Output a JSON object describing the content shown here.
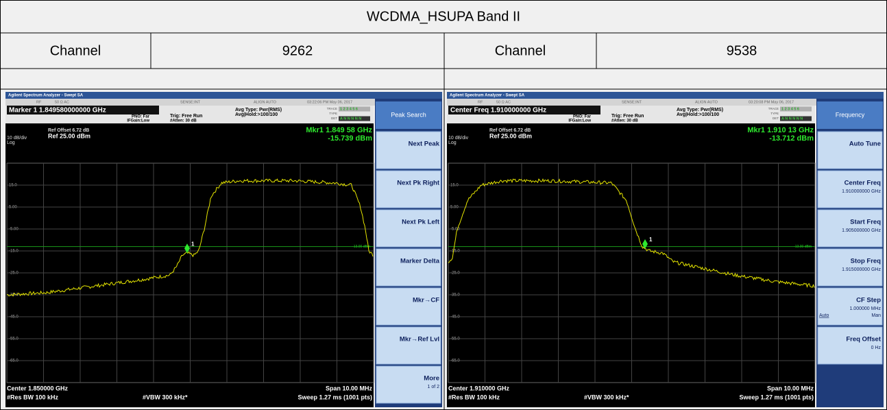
{
  "header": {
    "title": "WCDMA_HSUPA Band II"
  },
  "channels": [
    {
      "label": "Channel",
      "value": "9262"
    },
    {
      "label": "Channel",
      "value": "9538"
    }
  ],
  "analyzers": [
    {
      "app_title": "Agilent Spectrum Analyzer - Swept SA",
      "status": [
        "RF",
        "50 Ω AC",
        "SENSE:INT",
        "ALIGN AUTO",
        "03:22:06 PM May 06, 2017"
      ],
      "marker_line": "Marker 1 1.849580000000 GHz",
      "pno": "PNO: Far",
      "ifgain": "IFGain:Low",
      "trig": "Trig: Free Run",
      "atten": "#Atten: 30 dB",
      "avg_type": "Avg Type: Pwr(RMS)",
      "avg_hold": "Avg|Hold:>100/100",
      "trace_labels": [
        "TRACE",
        "TYPE",
        "DET"
      ],
      "trace_numbers": "1 2 3 4 5 6",
      "det_value": "A N N N N N",
      "ref_offset": "Ref Offset 6.72 dB",
      "scale": "10 dB/div",
      "ref_level": "Ref 25.00 dBm",
      "log": "Log",
      "mkr_freq": "Mkr1 1.849 58 GHz",
      "mkr_level": "-15.739 dBm",
      "y_labels": [
        "15.0",
        "5.00",
        "-5.00",
        "-15.0",
        "-25.0",
        "-35.0",
        "-45.0",
        "-55.0",
        "-65.0"
      ],
      "limit_label": "-13.00 dBm",
      "marker_number": "1",
      "center": "Center 1.850000 GHz",
      "res_bw": "#Res BW 100 kHz",
      "vbw": "#VBW 300 kHz*",
      "span": "Span 10.00 MHz",
      "sweep": "Sweep  1.27 ms (1001 pts)",
      "softkeys": {
        "header": "Peak Search",
        "keys": [
          {
            "label": "Next Peak"
          },
          {
            "label": "Next Pk Right"
          },
          {
            "label": "Next Pk Left"
          },
          {
            "label": "Marker Delta"
          },
          {
            "label": "Mkr→CF"
          },
          {
            "label": "Mkr→Ref Lvl"
          },
          {
            "label": "More",
            "lines": [
              "1 of 2"
            ]
          }
        ]
      }
    },
    {
      "app_title": "Agilent Spectrum Analyzer - Swept SA",
      "status": [
        "RF",
        "50 Ω AC",
        "SENSE:INT",
        "ALIGN AUTO",
        "03:20:08 PM May 06, 2017"
      ],
      "marker_line": "Center Freq  1.910000000 GHz",
      "pno": "PNO: Far",
      "ifgain": "IFGain:Low",
      "trig": "Trig: Free Run",
      "atten": "#Atten: 30 dB",
      "avg_type": "Avg Type: Pwr(RMS)",
      "avg_hold": "Avg|Hold:>100/100",
      "trace_labels": [
        "TRACE",
        "TYPE",
        "DET"
      ],
      "trace_numbers": "1 2 3 4 5 6",
      "det_value": "A N N N N N",
      "ref_offset": "Ref Offset 6.72 dB",
      "scale": "10 dB/div",
      "ref_level": "Ref 25.00 dBm",
      "log": "Log",
      "mkr_freq": "Mkr1 1.910 13 GHz",
      "mkr_level": "-13.712 dBm",
      "y_labels": [
        "15.0",
        "5.00",
        "-5.00",
        "-15.0",
        "-25.0",
        "-35.0",
        "-45.0",
        "-55.0",
        "-65.0"
      ],
      "limit_label": "-13.00 dBm",
      "marker_number": "1",
      "center": "Center 1.910000 GHz",
      "res_bw": "#Res BW 100 kHz",
      "vbw": "#VBW 300 kHz*",
      "span": "Span 10.00 MHz",
      "sweep": "Sweep  1.27 ms (1001 pts)",
      "softkeys": {
        "header": "Frequency",
        "keys": [
          {
            "label": "Auto Tune"
          },
          {
            "label": "Center Freq",
            "lines": [
              "1.910000000 GHz"
            ]
          },
          {
            "label": "Start Freq",
            "lines": [
              "1.905000000 GHz"
            ]
          },
          {
            "label": "Stop Freq",
            "lines": [
              "1.915000000 GHz"
            ]
          },
          {
            "label": "CF Step",
            "lines": [
              "1.000000 MHz"
            ],
            "options": [
              "Auto",
              "Man"
            ]
          },
          {
            "label": "Freq Offset",
            "lines": [
              "0 Hz"
            ]
          }
        ]
      }
    }
  ]
}
